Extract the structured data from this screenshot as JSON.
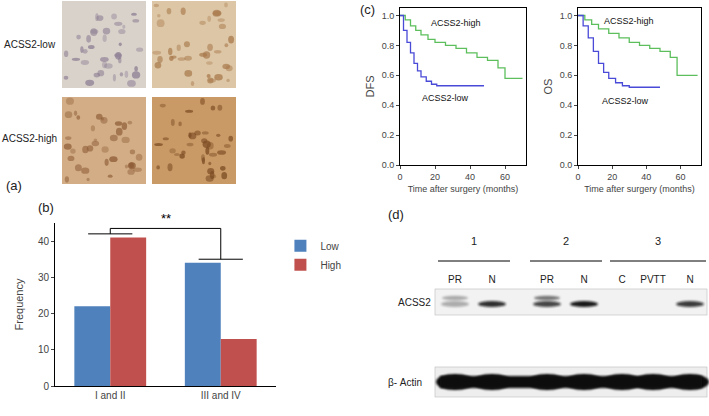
{
  "panel_a": {
    "panel_label": "(a)",
    "rows": [
      "ACSS2-low",
      "ACSS2-high"
    ]
  },
  "chart_data": [
    {
      "panel_label": "(b)",
      "type": "bar",
      "categories": [
        "I and II",
        "III and IV"
      ],
      "series": [
        {
          "name": "Low",
          "color": "#4f81bd",
          "values": [
            22,
            34
          ]
        },
        {
          "name": "High",
          "color": "#c0504d",
          "values": [
            41,
            13
          ]
        }
      ],
      "y_label": "Frequency",
      "ylim": [
        0,
        45
      ],
      "yticks": [
        0,
        10,
        20,
        30,
        40
      ],
      "annotations": [
        {
          "text": "**"
        }
      ],
      "legend": "right",
      "grid": false
    },
    {
      "panel_label": "(c)",
      "type": "line",
      "line_style": "step",
      "y_label": "DFS",
      "x_label": "Time after surgery (months)",
      "xlim": [
        0,
        72
      ],
      "xticks": [
        0,
        20,
        40,
        60
      ],
      "ylim": [
        0,
        1.05
      ],
      "yticks": [
        {
          "value": 0,
          "label": "0.0"
        },
        {
          "value": 0.2,
          "label": "0.2"
        },
        {
          "value": 0.4,
          "label": "0.4"
        },
        {
          "value": 0.6,
          "label": "0.6"
        },
        {
          "value": 0.8,
          "label": "0.8"
        },
        {
          "value": 1,
          "label": "1.0"
        }
      ],
      "series": [
        {
          "color": "#5cbf5c",
          "x": [
            0,
            3,
            6,
            9,
            12,
            16,
            20,
            26,
            32,
            38,
            44,
            50,
            56,
            60,
            70
          ],
          "values": [
            1,
            0.97,
            0.93,
            0.9,
            0.87,
            0.84,
            0.82,
            0.8,
            0.78,
            0.75,
            0.72,
            0.7,
            0.65,
            0.58,
            0.58
          ]
        },
        {
          "color": "#4a4ad8",
          "x": [
            0,
            2,
            4,
            6,
            8,
            10,
            12,
            15,
            18,
            21,
            25,
            48
          ],
          "values": [
            1,
            0.9,
            0.82,
            0.75,
            0.68,
            0.63,
            0.59,
            0.56,
            0.54,
            0.53,
            0.53,
            0.53
          ]
        }
      ],
      "annotations": [
        {
          "text": "ACSS2-high",
          "x": 32,
          "y": 0.95
        },
        {
          "text": "ACSS2-low",
          "x": 26,
          "y": 0.45
        }
      ],
      "grid": false
    },
    {
      "type": "line",
      "line_style": "step",
      "y_label": "OS",
      "x_label": "Time after surgery (months)",
      "xlim": [
        0,
        72
      ],
      "xticks": [
        0,
        20,
        40,
        60
      ],
      "ylim": [
        0,
        1.05
      ],
      "yticks": [
        {
          "value": 0,
          "label": "0.0"
        },
        {
          "value": 0.2,
          "label": "0.2"
        },
        {
          "value": 0.4,
          "label": "0.4"
        },
        {
          "value": 0.6,
          "label": "0.6"
        },
        {
          "value": 0.8,
          "label": "0.8"
        },
        {
          "value": 1,
          "label": "1.0"
        }
      ],
      "series": [
        {
          "color": "#5cbf5c",
          "x": [
            0,
            4,
            8,
            12,
            18,
            24,
            30,
            36,
            42,
            48,
            54,
            58,
            70
          ],
          "values": [
            1,
            0.97,
            0.94,
            0.91,
            0.88,
            0.85,
            0.82,
            0.8,
            0.78,
            0.76,
            0.72,
            0.6,
            0.6
          ]
        },
        {
          "color": "#4a4ad8",
          "x": [
            0,
            3,
            6,
            9,
            12,
            15,
            18,
            22,
            26,
            30,
            48
          ],
          "values": [
            1,
            0.93,
            0.85,
            0.76,
            0.68,
            0.62,
            0.58,
            0.55,
            0.53,
            0.52,
            0.52
          ]
        }
      ],
      "annotations": [
        {
          "text": "ACSS2-high",
          "x": 30,
          "y": 0.96
        },
        {
          "text": "ACSS2-low",
          "x": 28,
          "y": 0.43
        }
      ],
      "grid": false
    }
  ],
  "panel_d": {
    "panel_label": "(d)",
    "groups": [
      {
        "label": "1",
        "lanes": [
          "PR",
          "N"
        ]
      },
      {
        "label": "2",
        "lanes": [
          "PR",
          "N"
        ]
      },
      {
        "label": "3",
        "lanes": [
          "C",
          "PVTT",
          "N"
        ]
      }
    ],
    "rows": [
      "ACSS2",
      "β- Actin"
    ]
  }
}
